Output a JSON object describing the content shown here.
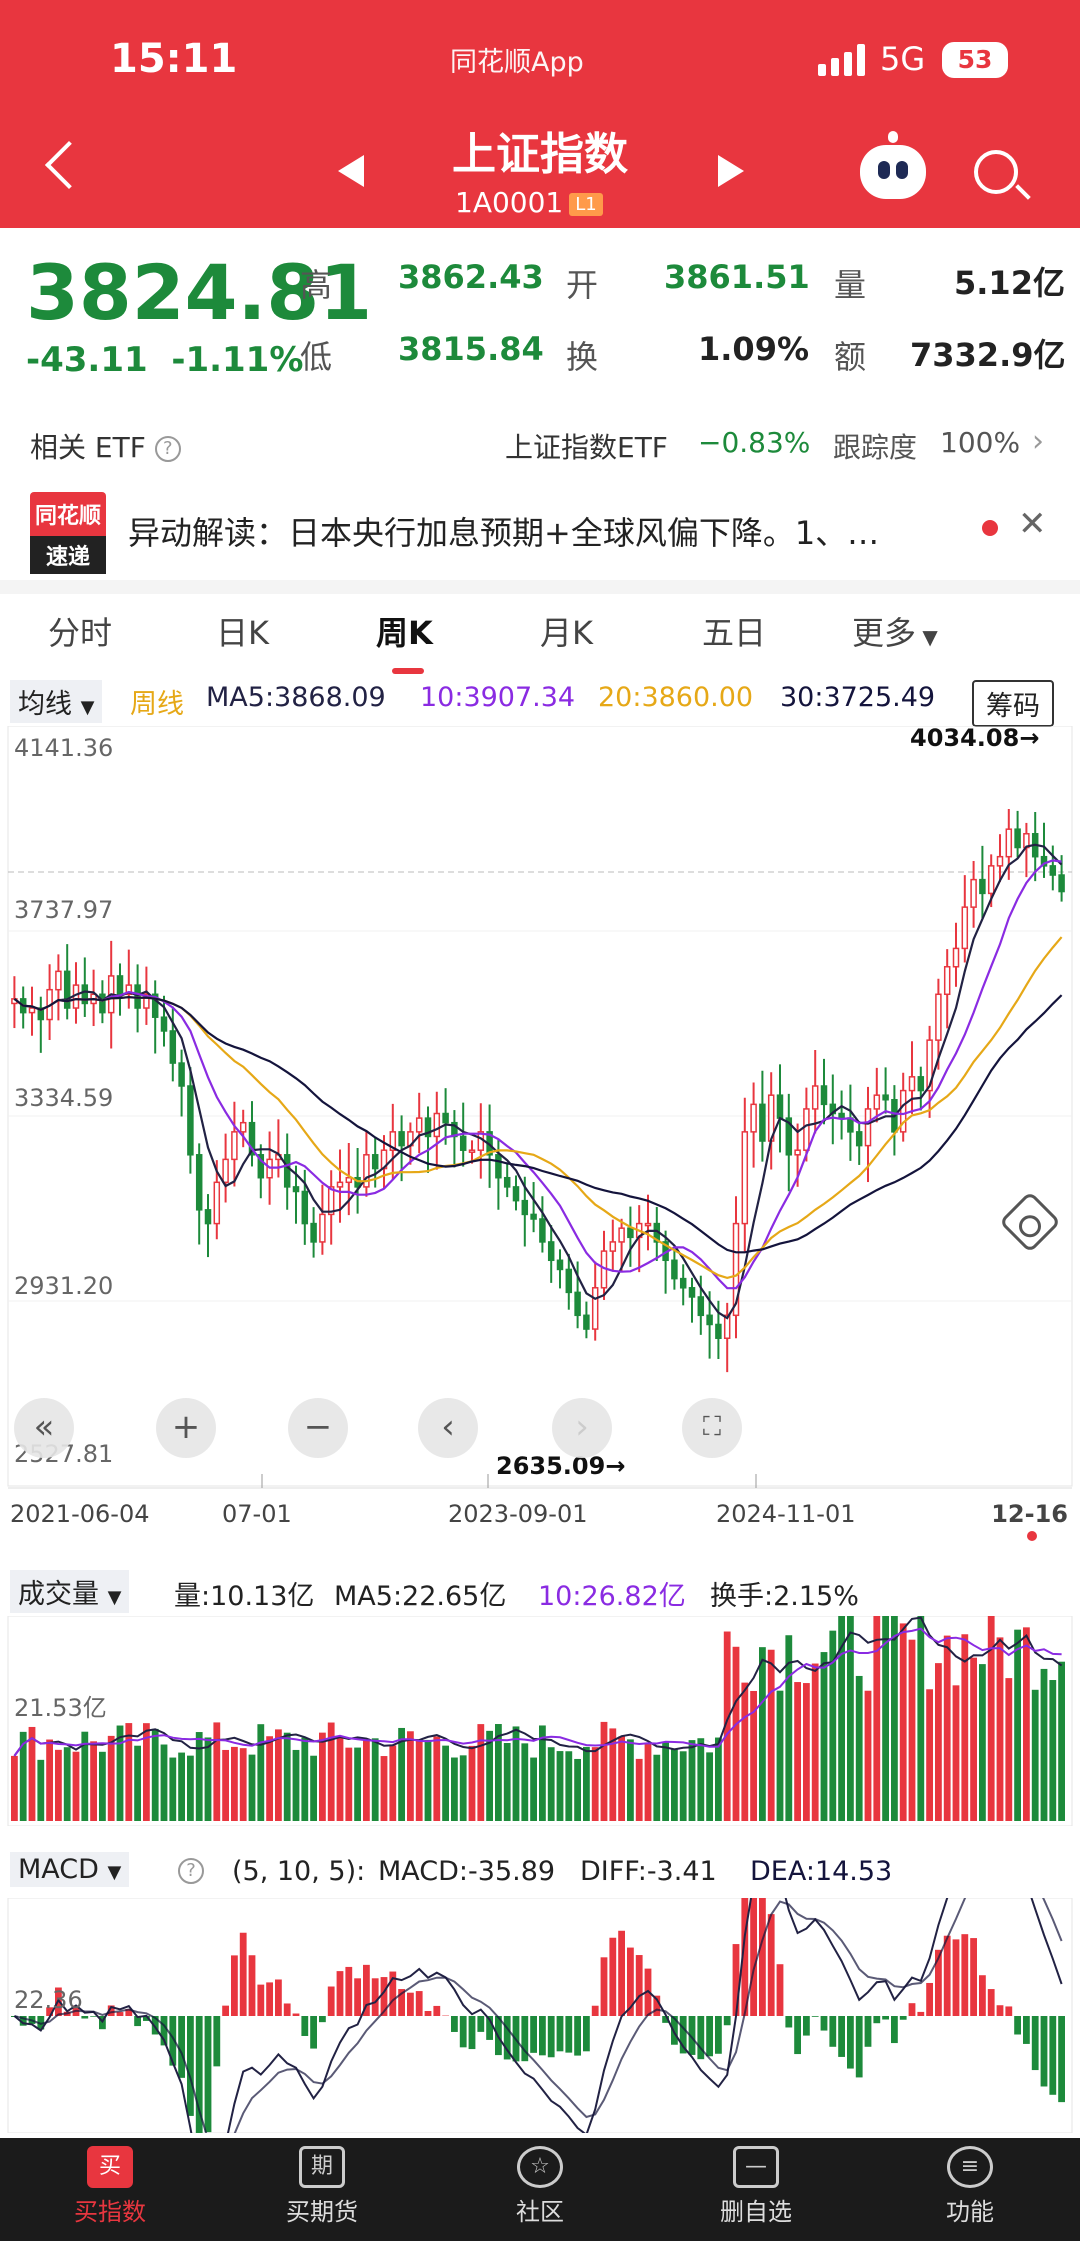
{
  "status": {
    "time": "15:11",
    "app": "同花顺App",
    "network": "5G",
    "battery": "53"
  },
  "header": {
    "title": "上证指数",
    "code": "1A0001",
    "level": "L1"
  },
  "quote": {
    "price": "3824.81",
    "change": "-43.11",
    "change_pct": "-1.11%",
    "high_label": "高",
    "high": "3862.43",
    "open_label": "开",
    "open": "3861.51",
    "vol_label": "量",
    "vol": "5.12亿",
    "low_label": "低",
    "low": "3815.84",
    "turnover_label": "换",
    "turnover": "1.09%",
    "amount_label": "额",
    "amount": "7332.9亿"
  },
  "etf": {
    "label": "相关 ETF",
    "name": "上证指数ETF",
    "change": "−0.83%",
    "track_label": "跟踪度",
    "track": "100%"
  },
  "news": {
    "logo_top": "同花顺",
    "logo_bottom": "速递",
    "text": "异动解读：日本央行加息预期+全球风偏下降。1、…"
  },
  "tabs": [
    "分时",
    "日K",
    "周K",
    "月K",
    "五日",
    "更多"
  ],
  "ma": {
    "selector": "均线",
    "period": "周线",
    "ma5": "MA5:3868.09",
    "ma10": "10:3907.34",
    "ma20": "20:3860.00",
    "ma30": "30:3725.49",
    "chip_btn": "筹码"
  },
  "colors": {
    "up": "#e8363f",
    "down": "#1d8a3b",
    "ma5": "#222244",
    "ma10": "#8a2be2",
    "ma20": "#e6a817",
    "ma30": "#14143c"
  },
  "chart_data": {
    "type": "candlestick",
    "y_ticks": [
      "4141.36",
      "3737.97",
      "3334.59",
      "2931.20",
      "2527.81"
    ],
    "x_ticks": [
      "2021-06-04",
      "07-01",
      "2023-09-01",
      "2024-11-01",
      "12-16"
    ],
    "high_label": "4034.08→",
    "low_label": "2635.09→",
    "ylim": [
      2527.81,
      4141.36
    ],
    "close_path": [
      3590,
      3560,
      3570,
      3545,
      3610,
      3650,
      3570,
      3620,
      3580,
      3600,
      3560,
      3640,
      3600,
      3620,
      3570,
      3600,
      3550,
      3520,
      3450,
      3400,
      3250,
      3130,
      3100,
      3190,
      3240,
      3300,
      3320,
      3250,
      3200,
      3240,
      3250,
      3180,
      3170,
      3100,
      3060,
      3120,
      3180,
      3190,
      3200,
      3180,
      3250,
      3220,
      3260,
      3300,
      3270,
      3300,
      3330,
      3290,
      3340,
      3320,
      3290,
      3260,
      3260,
      3300,
      3250,
      3200,
      3180,
      3150,
      3120,
      3110,
      3060,
      3020,
      3000,
      2950,
      2900,
      2870,
      2960,
      3040,
      3060,
      3090,
      3070,
      3100,
      3100,
      3060,
      3020,
      2980,
      2960,
      2940,
      2900,
      2880,
      2850,
      2900,
      3100,
      3300,
      3360,
      3280,
      3380,
      3330,
      3250,
      3260,
      3350,
      3400,
      3360,
      3340,
      3330,
      3300,
      3270,
      3350,
      3380,
      3370,
      3300,
      3390,
      3420,
      3390,
      3500,
      3600,
      3660,
      3700,
      3790,
      3850,
      3820,
      3880,
      3900,
      3960,
      3920,
      3950,
      3900,
      3880,
      3860,
      3824
    ]
  },
  "volume": {
    "selector": "成交量",
    "vol": "量:10.13亿",
    "ma5": "MA5:22.65亿",
    "ma10": "10:26.82亿",
    "turnover": "换手:2.15%",
    "tick": "21.53亿"
  },
  "macd": {
    "selector": "MACD",
    "params": "(5, 10, 5):",
    "macd": "MACD:-35.89",
    "diff": "DIFF:-3.41",
    "dea": "DEA:14.53",
    "tick": "22.36"
  },
  "nav": [
    {
      "label": "买指数",
      "icon": "买"
    },
    {
      "label": "买期货",
      "icon": "期"
    },
    {
      "label": "社区",
      "icon": "☆"
    },
    {
      "label": "删自选",
      "icon": "—"
    },
    {
      "label": "功能",
      "icon": "≡"
    }
  ]
}
